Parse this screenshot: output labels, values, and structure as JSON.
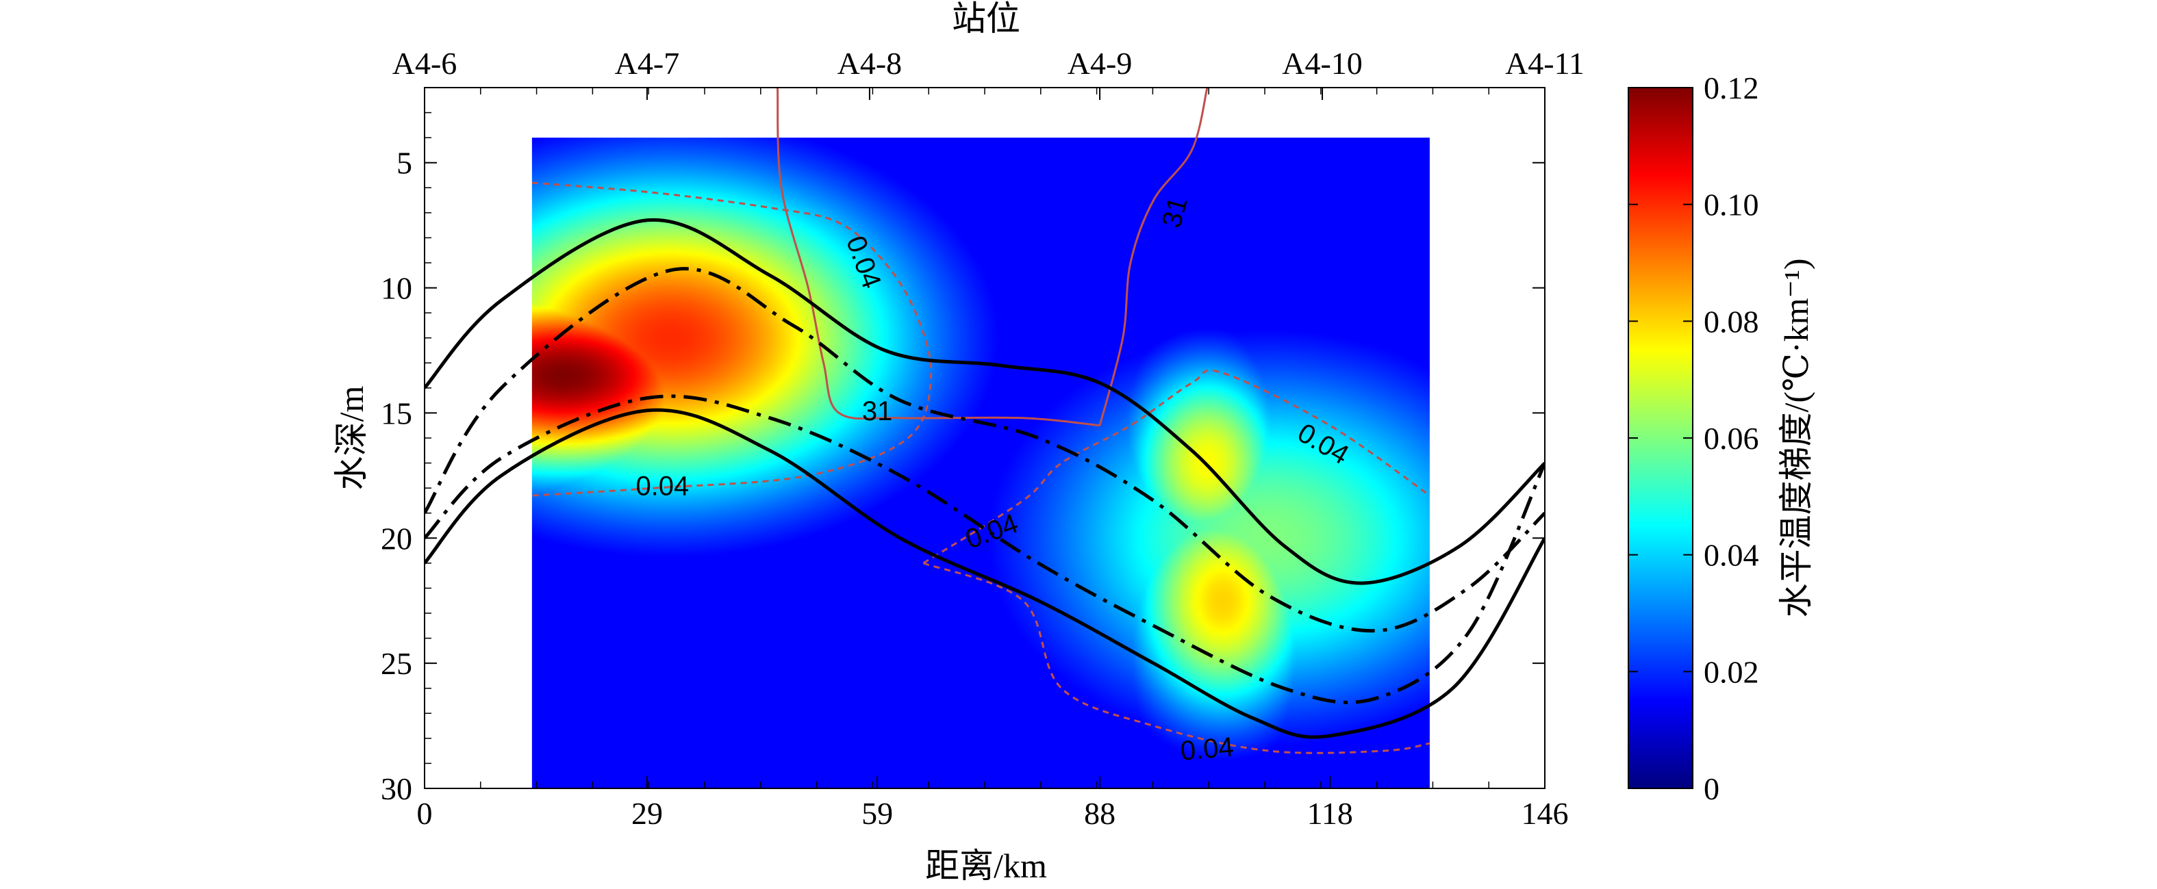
{
  "chart_data": {
    "type": "heatmap",
    "title": "",
    "xlabel": "距离/km",
    "ylabel": "水深/m",
    "top_label": "站位",
    "colorbar_label": "水平温度梯度/(℃·km⁻¹)",
    "xlim": [
      0,
      146
    ],
    "ylim": [
      30,
      2
    ],
    "x_ticks": [
      0,
      29,
      59,
      88,
      118,
      146
    ],
    "y_ticks": [
      5,
      10,
      15,
      20,
      25,
      30
    ],
    "colorbar_range": [
      0,
      0.12
    ],
    "colorbar_ticks": [
      "0",
      "0.02",
      "0.04",
      "0.06",
      "0.08",
      "0.10",
      "0.12"
    ],
    "colormap": "jet",
    "stations": [
      {
        "name": "A4-6",
        "x": 0
      },
      {
        "name": "A4-7",
        "x": 29
      },
      {
        "name": "A4-8",
        "x": 58
      },
      {
        "name": "A4-9",
        "x": 88
      },
      {
        "name": "A4-10",
        "x": 117
      },
      {
        "name": "A4-11",
        "x": 146
      }
    ],
    "data_extent": {
      "x": [
        14,
        131
      ],
      "y": [
        4,
        30
      ]
    },
    "hotspots": [
      {
        "x": 18,
        "y": 13.5,
        "value": 0.12,
        "sx": 18,
        "sy": 2.8
      },
      {
        "x": 32,
        "y": 12,
        "value": 0.1,
        "sx": 22,
        "sy": 4.5
      },
      {
        "x": 102,
        "y": 17,
        "value": 0.075,
        "sx": 8,
        "sy": 3
      },
      {
        "x": 104,
        "y": 22.5,
        "value": 0.08,
        "sx": 9,
        "sy": 3.5
      },
      {
        "x": 110,
        "y": 20,
        "value": 0.06,
        "sx": 22,
        "sy": 5
      }
    ],
    "background_value": 0.015,
    "contours": [
      {
        "label": "0.04",
        "style": "dashed",
        "color": "#c0504d",
        "points": [
          [
            14,
            5.8
          ],
          [
            30,
            6.2
          ],
          [
            45,
            6.8
          ],
          [
            54,
            7.4
          ],
          [
            60,
            9
          ],
          [
            64,
            11
          ],
          [
            66,
            13.5
          ],
          [
            63,
            16
          ],
          [
            50,
            17.5
          ],
          [
            30,
            18
          ],
          [
            14,
            18.3
          ]
        ]
      },
      {
        "label": "0.04",
        "style": "dashed",
        "color": "#c0504d",
        "points": [
          [
            65,
            21
          ],
          [
            78,
            18.5
          ],
          [
            83,
            17
          ],
          [
            92,
            15.5
          ],
          [
            100,
            13.8
          ],
          [
            104,
            13.4
          ],
          [
            118,
            15.5
          ],
          [
            131,
            18.3
          ]
        ]
      },
      {
        "label": "0.04",
        "style": "dashed",
        "color": "#c0504d",
        "points": [
          [
            65,
            21
          ],
          [
            78,
            22.5
          ],
          [
            83,
            26
          ],
          [
            95,
            27.5
          ],
          [
            110,
            28.5
          ],
          [
            125,
            28.5
          ],
          [
            131,
            28.2
          ]
        ]
      },
      {
        "label": "31",
        "style": "solid",
        "color": "#c0504d",
        "points": [
          [
            46,
            2
          ],
          [
            46.5,
            6
          ],
          [
            50,
            10
          ],
          [
            52,
            13
          ],
          [
            54,
            15
          ],
          [
            62,
            15.2
          ],
          [
            78,
            15.2
          ],
          [
            88,
            15.5
          ]
        ]
      },
      {
        "label": "31",
        "style": "solid",
        "color": "#c0504d",
        "points": [
          [
            88,
            15.5
          ],
          [
            91,
            12
          ],
          [
            92,
            9
          ],
          [
            95,
            6.5
          ],
          [
            100,
            4.5
          ],
          [
            102,
            2
          ]
        ]
      }
    ],
    "contour_labels": [
      {
        "text": "0.04",
        "x": 57,
        "y": 9,
        "angle": 70
      },
      {
        "text": "0.04",
        "x": 31,
        "y": 18,
        "angle": 0
      },
      {
        "text": "0.04",
        "x": 74,
        "y": 19.8,
        "angle": -20
      },
      {
        "text": "0.04",
        "x": 117,
        "y": 16.3,
        "angle": 30
      },
      {
        "text": "0.04",
        "x": 102,
        "y": 28.5,
        "angle": -5
      },
      {
        "text": "31",
        "x": 59,
        "y": 15,
        "angle": 0
      },
      {
        "text": "31",
        "x": 98,
        "y": 7,
        "angle": -75
      }
    ],
    "series": [
      {
        "style": "solid",
        "points": [
          [
            0,
            14
          ],
          [
            10,
            10.5
          ],
          [
            29,
            7.3
          ],
          [
            45,
            9.5
          ],
          [
            60,
            12.5
          ],
          [
            75,
            13.1
          ],
          [
            88,
            13.8
          ],
          [
            100,
            16.5
          ],
          [
            112,
            20.3
          ],
          [
            122,
            21.8
          ],
          [
            135,
            20.3
          ],
          [
            146,
            17
          ]
        ]
      },
      {
        "style": "dashdot",
        "points": [
          [
            0,
            19
          ],
          [
            10,
            14
          ],
          [
            32,
            9.3
          ],
          [
            48,
            11.5
          ],
          [
            62,
            14.5
          ],
          [
            80,
            16
          ],
          [
            95,
            18.5
          ],
          [
            110,
            22.3
          ],
          [
            124,
            23.7
          ],
          [
            136,
            22
          ],
          [
            146,
            19
          ]
        ]
      },
      {
        "style": "dashdot",
        "points": [
          [
            0,
            20
          ],
          [
            10,
            16.8
          ],
          [
            29,
            14.4
          ],
          [
            45,
            15.2
          ],
          [
            62,
            17.5
          ],
          [
            80,
            21
          ],
          [
            95,
            23.5
          ],
          [
            112,
            26
          ],
          [
            124,
            26.4
          ],
          [
            136,
            23.8
          ],
          [
            146,
            17
          ]
        ]
      },
      {
        "style": "solid",
        "points": [
          [
            0,
            21
          ],
          [
            10,
            17.5
          ],
          [
            29,
            14.9
          ],
          [
            45,
            16.5
          ],
          [
            62,
            20
          ],
          [
            80,
            22.5
          ],
          [
            95,
            25
          ],
          [
            108,
            27.2
          ],
          [
            118,
            27.9
          ],
          [
            134,
            26
          ],
          [
            146,
            20
          ]
        ]
      }
    ]
  }
}
